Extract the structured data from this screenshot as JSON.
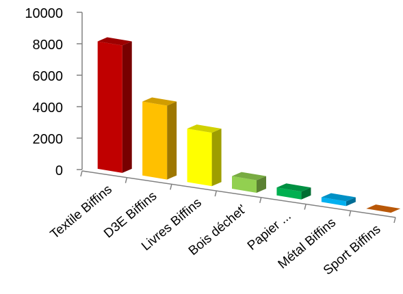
{
  "chart_data": {
    "type": "bar",
    "categories": [
      "Textile Biffins",
      "D3E Biffins",
      "Livres Biffins",
      "Bois déchet'",
      "Papier ...",
      "Métal Biffins",
      "Sport Biffins"
    ],
    "values": [
      8100,
      4700,
      3400,
      800,
      500,
      300,
      0
    ],
    "ylim": [
      0,
      10000
    ],
    "yticks": [
      "0",
      "2000",
      "4000",
      "6000",
      "8000",
      "10000"
    ],
    "colors": [
      "#c00000",
      "#ffc000",
      "#ffff00",
      "#92d050",
      "#00b050",
      "#00b0f0",
      "#e26b0a"
    ],
    "grid": false,
    "legend": "none",
    "style": "3d-column"
  }
}
